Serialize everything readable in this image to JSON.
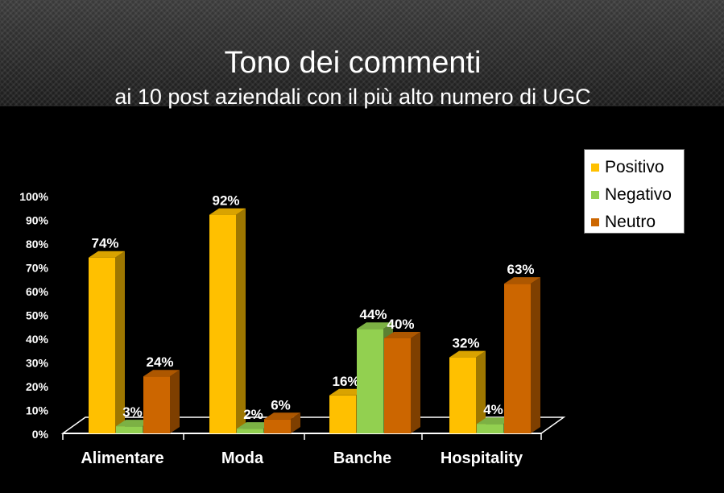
{
  "title": "Tono dei commenti",
  "subtitle": "ai 10 post aziendali con il più alto numero di UGC",
  "chart_data": {
    "type": "bar",
    "categories": [
      "Alimentare",
      "Moda",
      "Banche",
      "Hospitality"
    ],
    "series": [
      {
        "name": "Positivo",
        "values": [
          74,
          92,
          16,
          32
        ],
        "labels": [
          "74%",
          "92%",
          "16%",
          "32%"
        ],
        "color": "#FFC000"
      },
      {
        "name": "Negativo",
        "values": [
          3,
          2,
          44,
          4
        ],
        "labels": [
          "3%",
          "2%",
          "44%",
          "4%"
        ],
        "color": "#92D050"
      },
      {
        "name": "Neutro",
        "values": [
          24,
          6,
          40,
          63
        ],
        "labels": [
          "24%",
          "6%",
          "40%",
          "63%"
        ],
        "color": "#CC6600"
      }
    ],
    "ylim": [
      0,
      100
    ],
    "yticks": [
      "0%",
      "10%",
      "20%",
      "30%",
      "40%",
      "50%",
      "60%",
      "70%",
      "80%",
      "90%",
      "100%"
    ],
    "legend_position": "top-right",
    "grid": false
  }
}
